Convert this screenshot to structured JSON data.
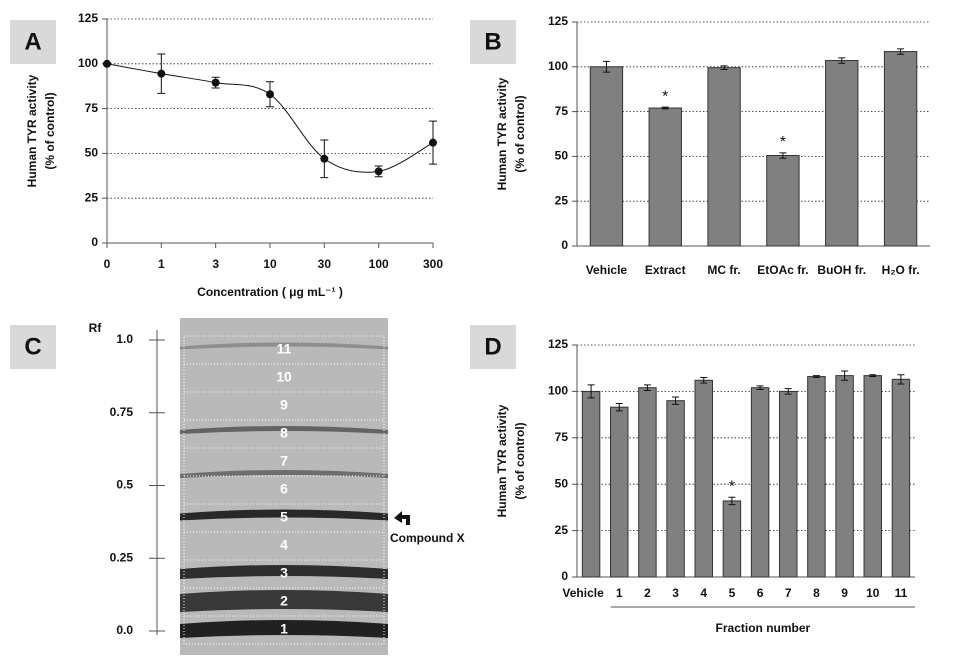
{
  "chart_data": [
    {
      "type": "line",
      "panel": "A",
      "ylabel": [
        "Human TYR activity",
        "(% of control)"
      ],
      "xlabel": "Concentration ( μg mL⁻¹ )",
      "categories": [
        "0",
        "1",
        "3",
        "10",
        "30",
        "100",
        "300"
      ],
      "values": [
        100,
        94.5,
        89.5,
        83,
        47,
        40,
        56
      ],
      "errors": [
        0,
        11,
        3,
        7,
        10.5,
        3,
        12
      ],
      "color": "#111111",
      "ylim": [
        0,
        125
      ],
      "yticks": [
        0,
        25,
        50,
        75,
        100,
        125
      ],
      "grid": true
    },
    {
      "type": "bar",
      "panel": "B",
      "ylabel": [
        "Human TYR activity",
        "(% of control)"
      ],
      "categories": [
        "Vehicle",
        "Extract",
        "MC fr.",
        "EtOAc fr.",
        "BuOH  fr.",
        "H₂O fr."
      ],
      "values": [
        100,
        77,
        99.5,
        50.5,
        103.5,
        108.5
      ],
      "errors": [
        3,
        0.5,
        1,
        1.5,
        1.5,
        1.5
      ],
      "significance": [
        null,
        "*",
        null,
        "*",
        null,
        null
      ],
      "color": "#808080",
      "ylim": [
        0,
        125
      ],
      "yticks": [
        0,
        25,
        50,
        75,
        100,
        125
      ],
      "grid": true
    },
    {
      "type": "tlc",
      "panel": "C",
      "ylabel": "Rf",
      "ylim": [
        0,
        1
      ],
      "yticks": [
        {
          "value": 0,
          "label": "0.0"
        },
        0.25,
        0.5,
        0.75,
        {
          "value": 1,
          "label": "1.0"
        }
      ],
      "bands": [
        "1",
        "2",
        "3",
        "4",
        "5",
        "6",
        "7",
        "8",
        "9",
        "10",
        "11"
      ],
      "annotation": "Compound X"
    },
    {
      "type": "bar",
      "panel": "D",
      "ylabel": [
        "Human TYR activity",
        "(% of control)"
      ],
      "xlabel": "Fraction number",
      "categories": [
        "Vehicle",
        "1",
        "2",
        "3",
        "4",
        "5",
        "6",
        "7",
        "8",
        "9",
        "10",
        "11"
      ],
      "values": [
        100,
        91.5,
        102,
        95,
        106,
        41,
        102,
        100,
        108,
        108.5,
        108.5,
        106.5
      ],
      "errors": [
        3.5,
        2,
        1.5,
        2,
        1.5,
        2,
        1,
        1.5,
        0.5,
        2.5,
        0.5,
        2.5
      ],
      "significance": [
        null,
        null,
        null,
        null,
        null,
        "*",
        null,
        null,
        null,
        null,
        null,
        null
      ],
      "color": "#808080",
      "ylim": [
        0,
        125
      ],
      "yticks": [
        0,
        25,
        50,
        75,
        100,
        125
      ],
      "grid": true
    }
  ]
}
